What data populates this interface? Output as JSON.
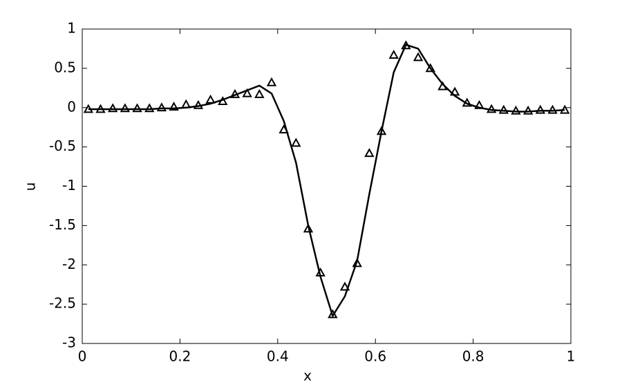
{
  "chart_data": {
    "type": "line",
    "x_label": "x",
    "y_label": "u",
    "x": [
      0.0125,
      0.0375,
      0.0625,
      0.0875,
      0.1125,
      0.1375,
      0.1625,
      0.1875,
      0.2125,
      0.2375,
      0.2625,
      0.2875,
      0.3125,
      0.3375,
      0.3625,
      0.3875,
      0.4125,
      0.4375,
      0.4625,
      0.4875,
      0.5125,
      0.5375,
      0.5625,
      0.5875,
      0.6125,
      0.6375,
      0.6625,
      0.6875,
      0.7125,
      0.7375,
      0.7625,
      0.7875,
      0.8125,
      0.8375,
      0.8625,
      0.8875,
      0.9125,
      0.9375,
      0.9625,
      0.9875
    ],
    "series": [
      {
        "color": "#000000",
        "style": "line",
        "values": [
          -0.02,
          -0.02,
          -0.02,
          -0.02,
          -0.02,
          -0.02,
          -0.01,
          -0.01,
          0.0,
          0.02,
          0.05,
          0.1,
          0.16,
          0.22,
          0.28,
          0.18,
          -0.17,
          -0.7,
          -1.5,
          -2.15,
          -2.65,
          -2.4,
          -1.95,
          -1.1,
          -0.3,
          0.45,
          0.8,
          0.75,
          0.5,
          0.3,
          0.15,
          0.05,
          0.0,
          -0.03,
          -0.04,
          -0.05,
          -0.05,
          -0.04,
          -0.04,
          -0.03
        ]
      },
      {
        "color": "#000000",
        "style": "triangle",
        "values": [
          -0.02,
          -0.02,
          -0.01,
          -0.01,
          -0.01,
          -0.01,
          0.0,
          0.01,
          0.04,
          0.03,
          0.1,
          0.08,
          0.17,
          0.18,
          0.17,
          0.32,
          -0.28,
          -0.45,
          -1.54,
          -2.1,
          -2.63,
          -2.28,
          -1.98,
          -0.58,
          -0.3,
          0.67,
          0.79,
          0.64,
          0.5,
          0.27,
          0.2,
          0.06,
          0.03,
          -0.02,
          -0.03,
          -0.04,
          -0.04,
          -0.03,
          -0.03,
          -0.03
        ]
      }
    ],
    "xlim": [
      0,
      1
    ],
    "xticks": [
      0,
      0.2,
      0.4,
      0.6,
      0.8,
      1
    ],
    "ylim": [
      -3,
      1
    ],
    "yticks": [
      -3,
      -2.5,
      -2,
      -1.5,
      -1,
      -0.5,
      0,
      0.5,
      1
    ],
    "grid": false
  }
}
